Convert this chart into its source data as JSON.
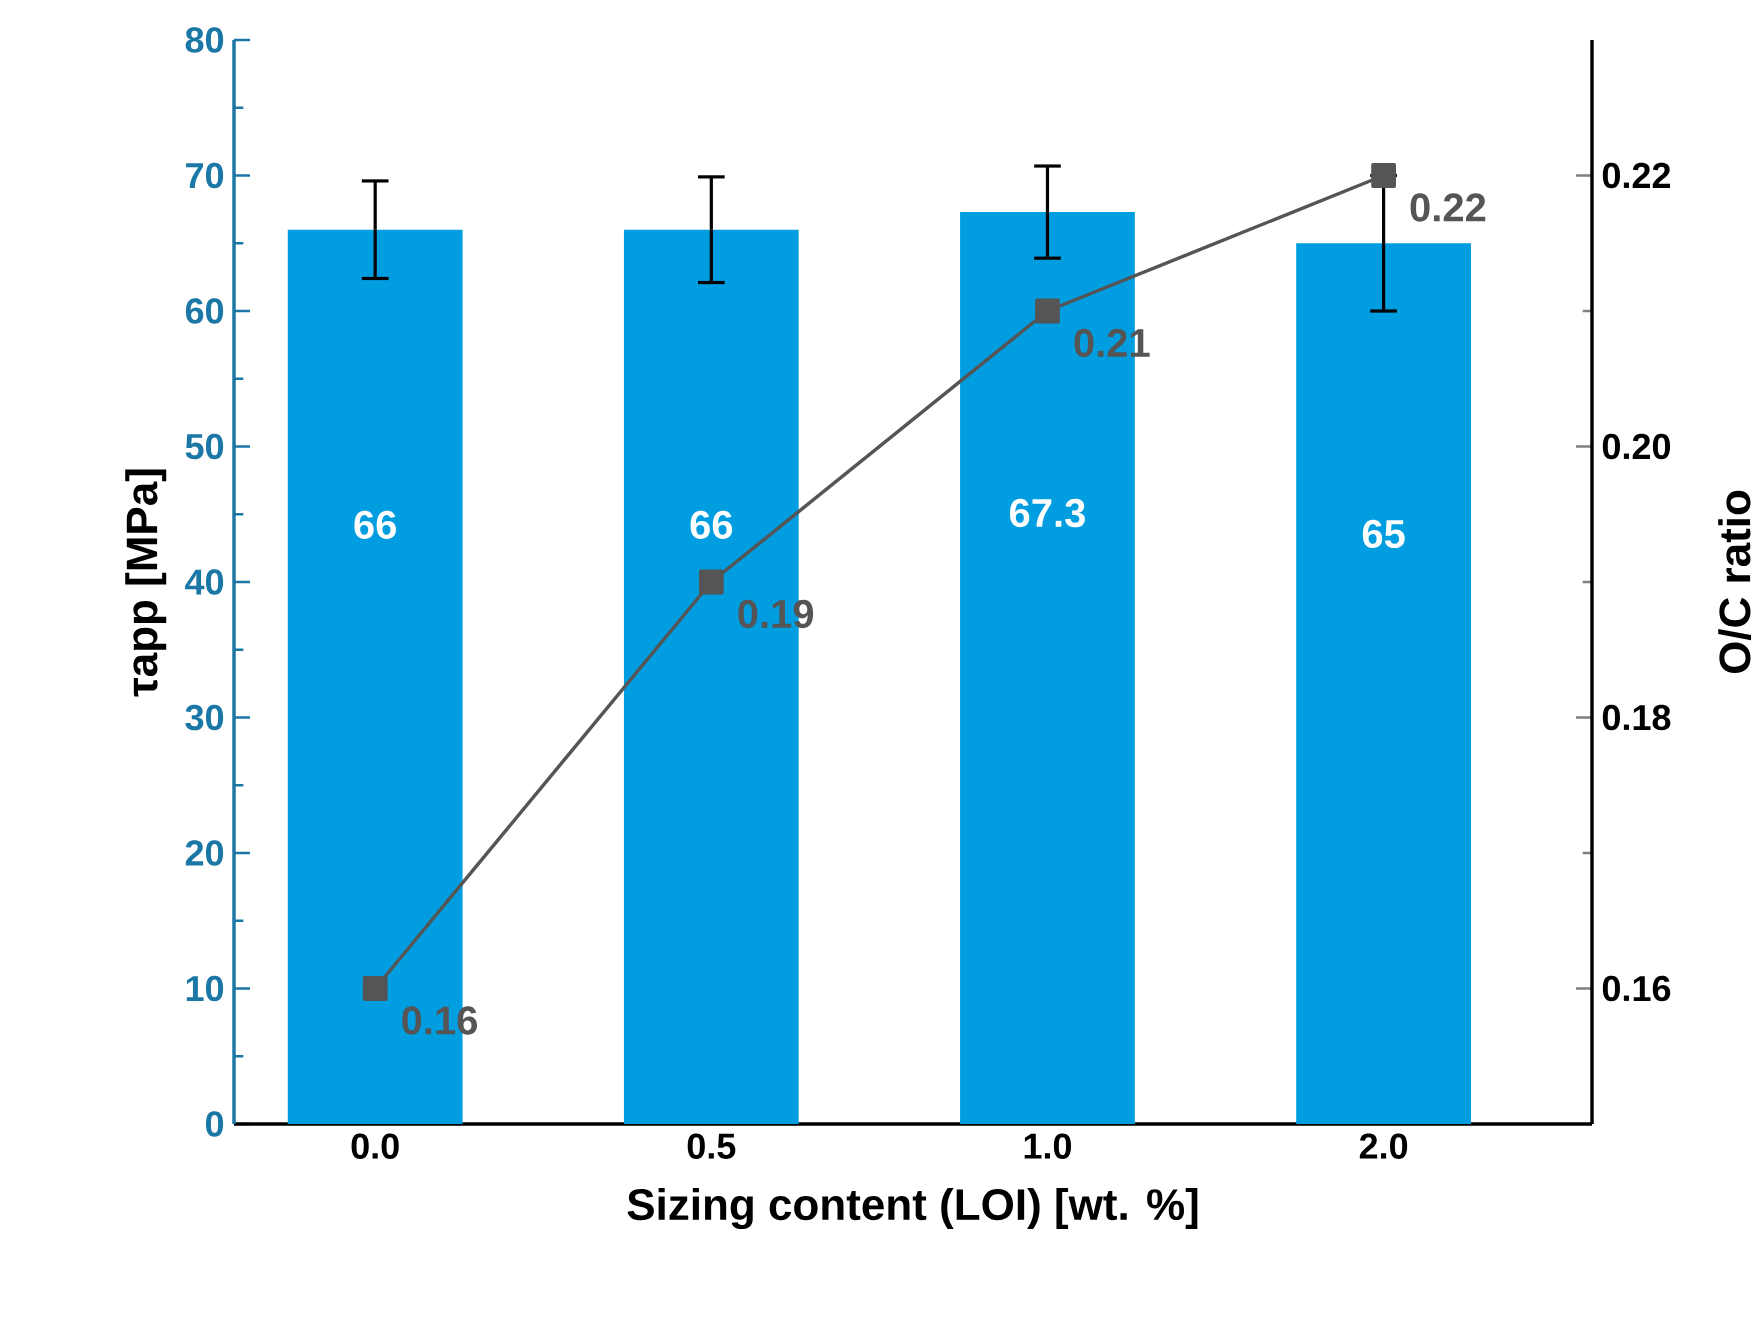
{
  "chart_data": {
    "type": "bar",
    "categories": [
      "0.0",
      "0.5",
      "1.0",
      "2.0"
    ],
    "xlabel": "Sizing content (LOI) [wt. %]",
    "ylabel": "τapp [MPa]",
    "y2label": "O/C ratio",
    "ylim": [
      0,
      80
    ],
    "yticks": [
      0,
      10,
      20,
      30,
      40,
      50,
      60,
      70,
      80
    ],
    "y2lim": [
      0.15,
      0.23
    ],
    "y2ticks": [
      0.16,
      0.18,
      {
        "value": 0.2,
        "label": "0.20"
      },
      0.22
    ],
    "data_labels": true,
    "series": [
      {
        "color": "#009ee0",
        "values": [
          66,
          66,
          67.3,
          65
        ],
        "errors": [
          3.6,
          3.9,
          3.4,
          5
        ]
      },
      {
        "type": "line",
        "axis": "y2",
        "color": "#555555",
        "marker": "square",
        "values": [
          0.16,
          0.19,
          0.21,
          0.22
        ]
      }
    ]
  }
}
